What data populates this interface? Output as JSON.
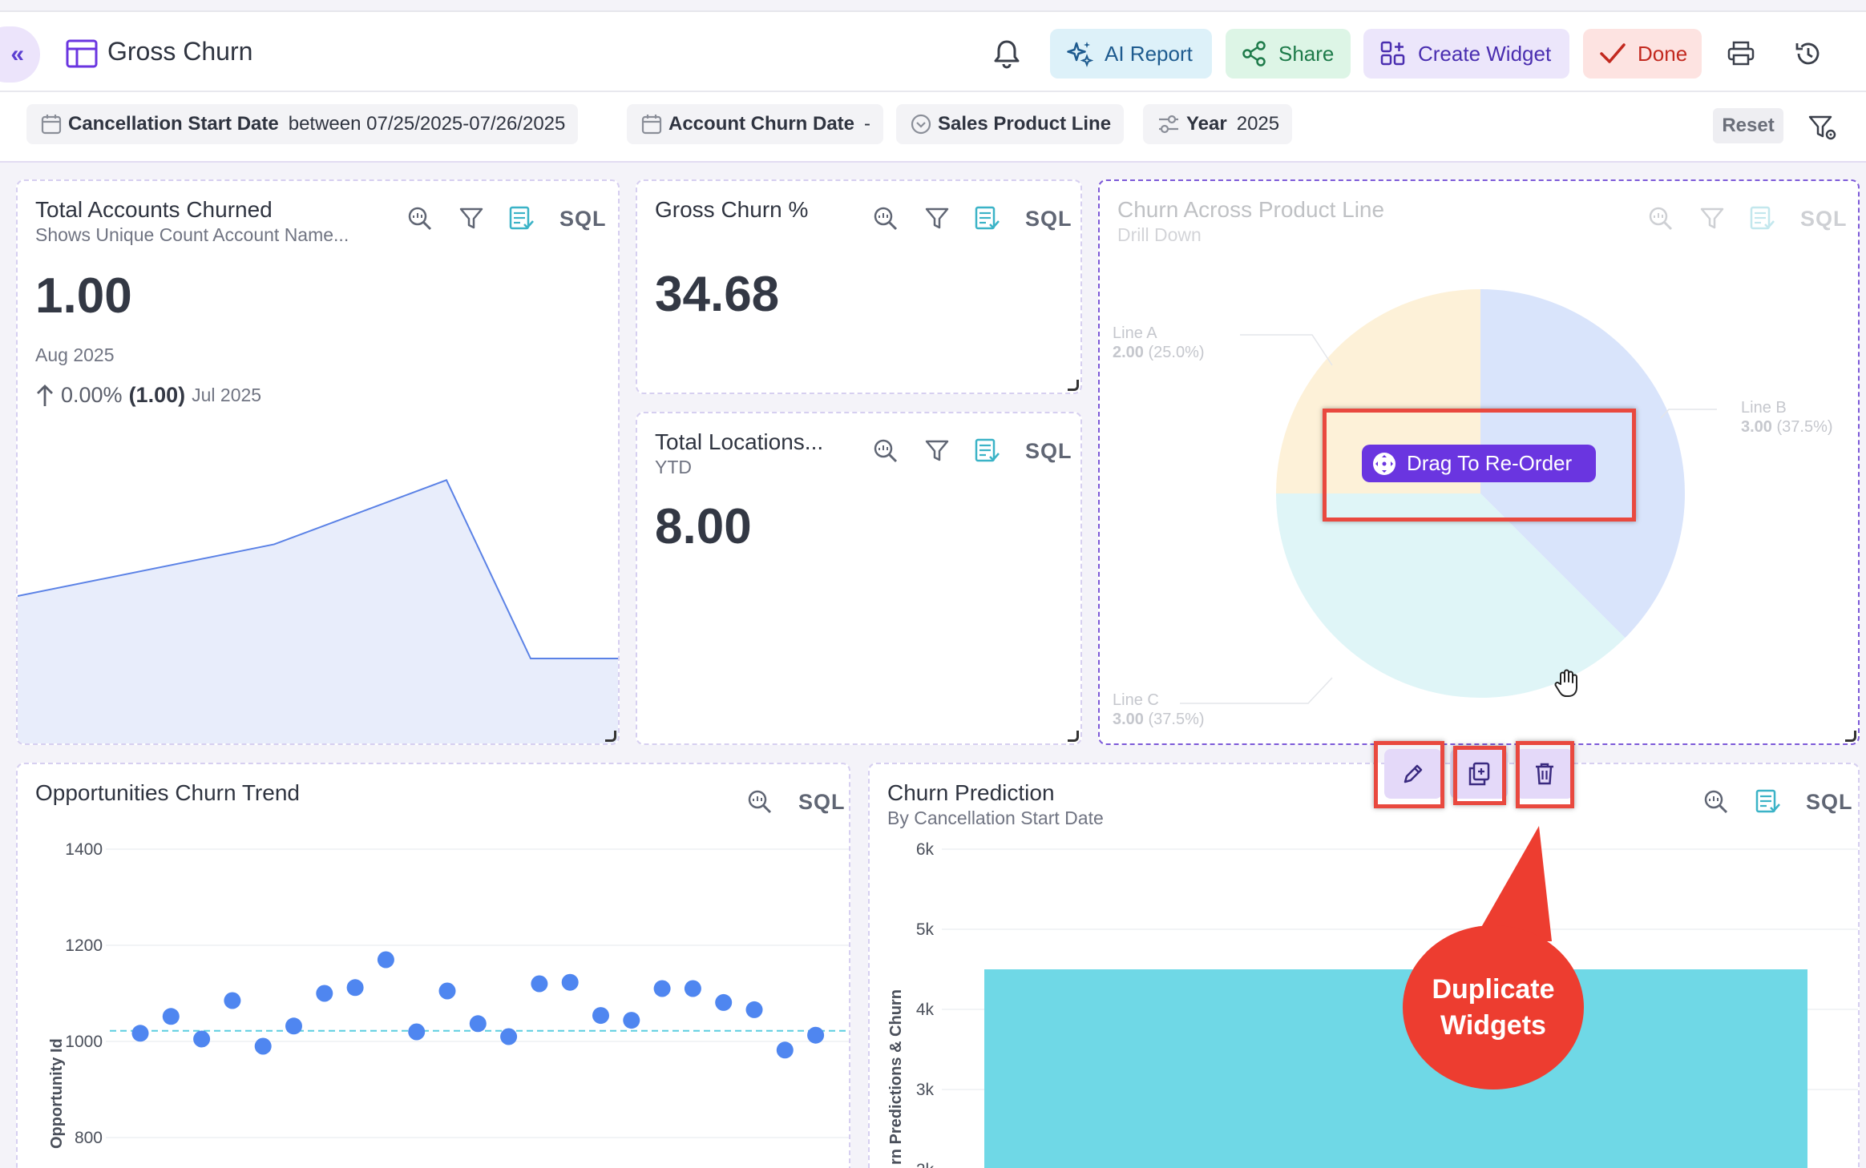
{
  "header": {
    "collapse_icon": "«",
    "title": "Gross Churn",
    "buttons": {
      "ai_report": "AI Report",
      "share": "Share",
      "create_widget": "Create Widget",
      "done": "Done"
    },
    "colors": {
      "brand": "#6a35e0",
      "done": "#c2291f",
      "share": "#1e7b4a",
      "ai": "#1e5b8f"
    }
  },
  "filters": {
    "cancellation": {
      "label": "Cancellation Start Date",
      "value": "between 07/25/2025-07/26/2025"
    },
    "account_churn": {
      "label": "Account Churn Date",
      "value": "-"
    },
    "sales_product": {
      "label": "Sales Product Line"
    },
    "year": {
      "label": "Year",
      "value": "2025"
    },
    "reset": "Reset"
  },
  "widgets": {
    "total_accounts": {
      "title": "Total Accounts Churned",
      "subtitle": "Shows Unique Count Account Name...",
      "value": "1.00",
      "period": "Aug 2025",
      "change_pct": "0.00%",
      "change_abs": "(1.00)",
      "change_period": "Jul 2025",
      "sql": "SQL"
    },
    "gross_churn_pct": {
      "title": "Gross Churn %",
      "value": "34.68",
      "sql": "SQL"
    },
    "total_locations": {
      "title": "Total Locations...",
      "subtitle": "YTD",
      "value": "8.00",
      "sql": "SQL"
    },
    "churn_product_line": {
      "title": "Churn Across Product Line",
      "subtitle": "Drill Down",
      "sql": "SQL",
      "labels": {
        "a_name": "Line A",
        "a_value": "2.00",
        "a_pct": "(25.0%)",
        "b_name": "Line B",
        "b_value": "3.00",
        "b_pct": "(37.5%)",
        "c_name": "Line C",
        "c_value": "3.00",
        "c_pct": "(37.5%)"
      }
    },
    "opp_churn_trend": {
      "title": "Opportunities Churn Trend",
      "sql": "SQL",
      "ylabel": "Opportunity Id"
    },
    "churn_prediction": {
      "title": "Churn Prediction",
      "subtitle": "By Cancellation Start Date",
      "sql": "SQL",
      "ylabel": "rn Predictions & Churn"
    }
  },
  "overlay": {
    "drag_label": "Drag To Re-Order",
    "callout_line1": "Duplicate",
    "callout_line2": "Widgets",
    "action_icons": [
      "pencil-icon",
      "duplicate-icon",
      "trash-icon"
    ]
  },
  "chart_data": [
    {
      "type": "area",
      "title": "",
      "x": [
        1,
        2,
        3,
        4,
        5
      ],
      "values": [
        0.35,
        0.64,
        1.0,
        0.0,
        0.0
      ],
      "ylim": [
        0,
        1.1
      ],
      "color": "#5b82e6"
    },
    {
      "type": "pie",
      "title": "Churn Across Product Line",
      "categories": [
        "Line A",
        "Line B",
        "Line C"
      ],
      "values": [
        2.0,
        3.0,
        3.0
      ],
      "percents": [
        25.0,
        37.5,
        37.5
      ],
      "colors": [
        "#fdf1d8",
        "#d9e4fb",
        "#dff5f7"
      ]
    },
    {
      "type": "scatter",
      "title": "Opportunities Churn Trend",
      "ylabel": "Opportunity Id",
      "y_ticks": [
        800,
        1000,
        1200,
        1400
      ],
      "ylim": [
        760,
        1430
      ],
      "values": [
        1017,
        1052,
        1005,
        1085,
        990,
        1032,
        1100,
        1112,
        1170,
        1020,
        1105,
        1037,
        1010,
        1120,
        1123,
        1054,
        1044,
        1110,
        1110,
        1081,
        1066,
        982,
        1013
      ],
      "reference_line": 1022,
      "color": "#4f86f0"
    },
    {
      "type": "bar",
      "title": "Churn Prediction",
      "subtitle": "By Cancellation Start Date",
      "ylabel": "rn Predictions & Churn",
      "y_ticks": [
        "6k",
        "5k",
        "4k",
        "3k",
        "2k"
      ],
      "ylim": [
        1800,
        6000
      ],
      "values": [
        4500
      ],
      "color": "#6fd8e6"
    }
  ]
}
